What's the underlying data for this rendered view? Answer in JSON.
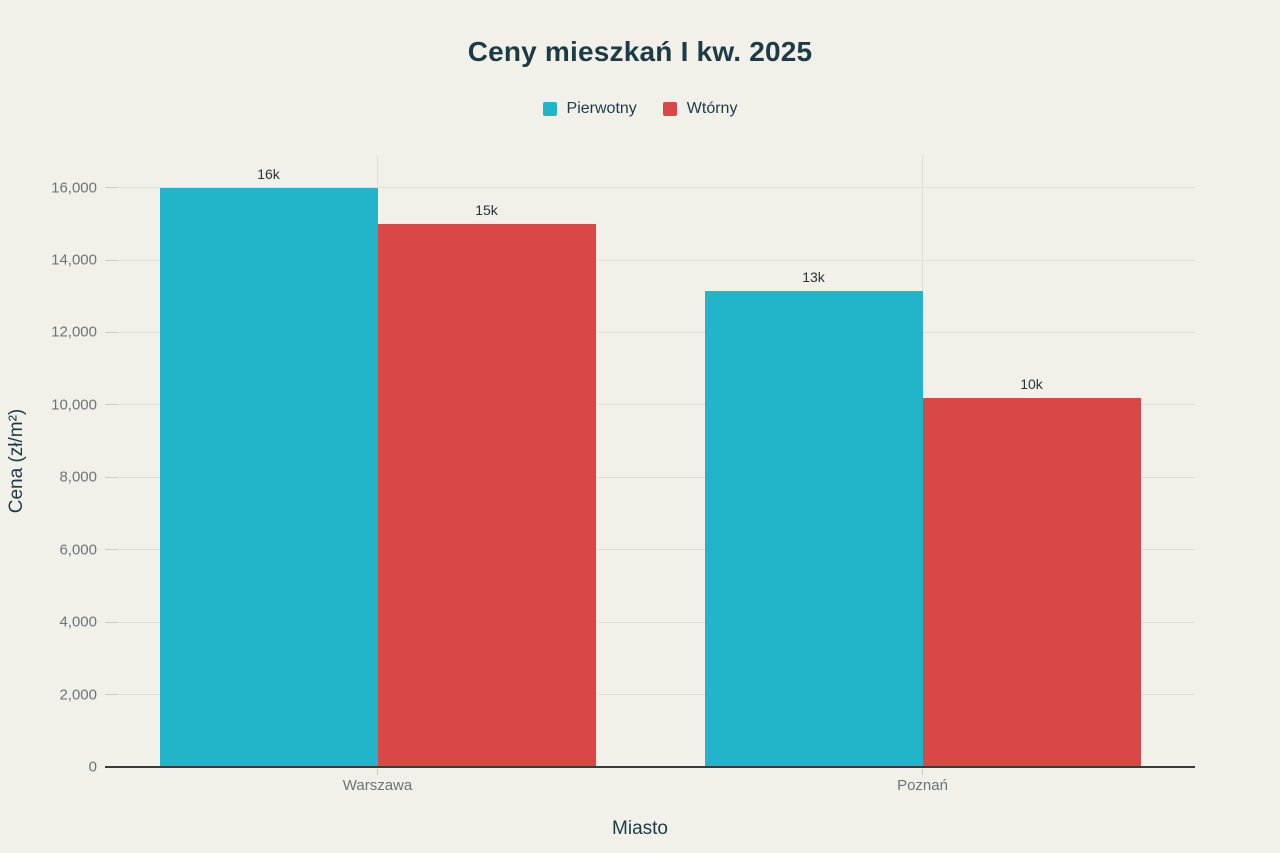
{
  "page": {
    "background": "#F1F1EA",
    "grid_color": "#DEDFD6",
    "axis_line_color": "#3A3A3A",
    "tick_label_color": "#6D7477",
    "text_color": "#1C3B45"
  },
  "chart_data": {
    "type": "bar",
    "title": "Ceny mieszkań I kw. 2025",
    "xlabel": "Miasto",
    "ylabel": "Cena (zł/m²)",
    "categories": [
      "Warszawa",
      "Poznań"
    ],
    "series": [
      {
        "name": "Pierwotny",
        "color": "#22B5C9",
        "values": [
          16000,
          13150
        ],
        "bar_labels": [
          "16k",
          "13k"
        ]
      },
      {
        "name": "Wtórny",
        "color": "#D94747",
        "values": [
          15000,
          10200
        ],
        "bar_labels": [
          "15k",
          "10k"
        ]
      }
    ],
    "ylim": [
      0,
      16900
    ],
    "yticks": [
      {
        "value": 0,
        "label": "0"
      },
      {
        "value": 2000,
        "label": "2,000"
      },
      {
        "value": 4000,
        "label": "4,000"
      },
      {
        "value": 6000,
        "label": "6,000"
      },
      {
        "value": 8000,
        "label": "8,000"
      },
      {
        "value": 10000,
        "label": "10,000"
      },
      {
        "value": 12000,
        "label": "12,000"
      },
      {
        "value": 14000,
        "label": "14,000"
      },
      {
        "value": 16000,
        "label": "16,000"
      }
    ],
    "grid": true,
    "legend_position": "top"
  }
}
